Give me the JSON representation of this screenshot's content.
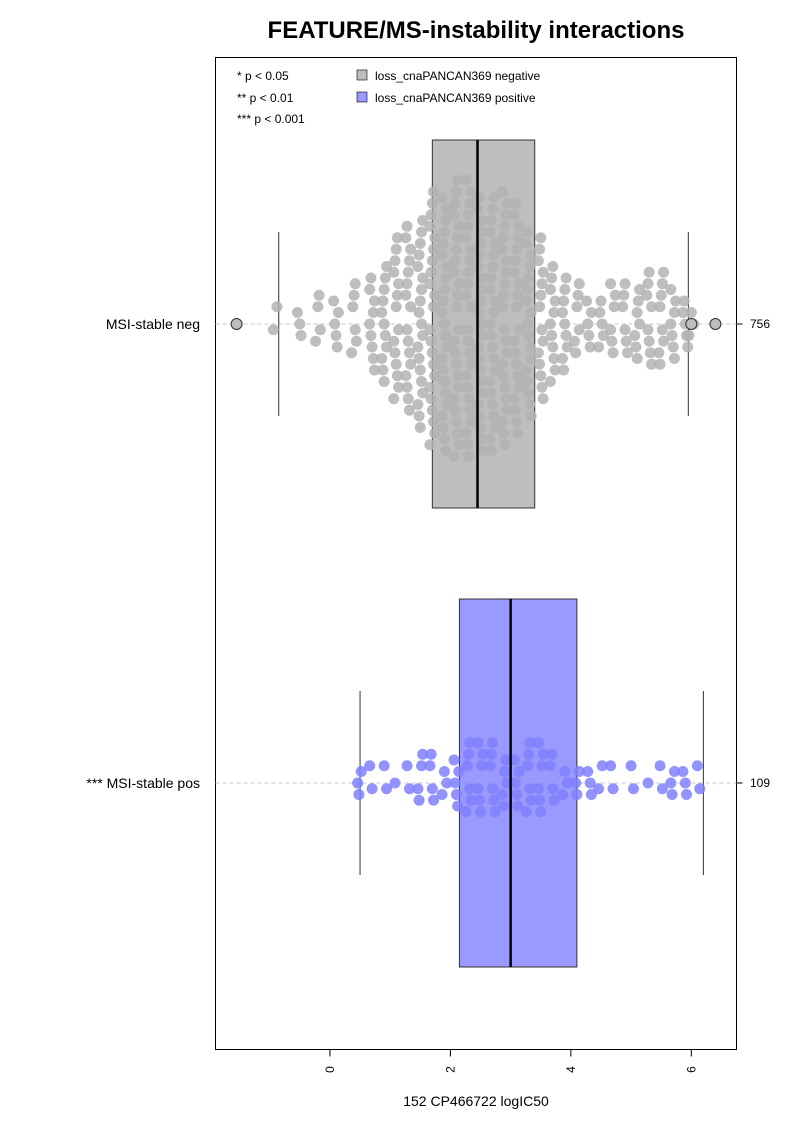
{
  "chart_data": {
    "type": "box-beeswarm",
    "orientation": "horizontal",
    "title": "FEATURE/MS-instability interactions",
    "xlabel": "152 CP466722 logIC50",
    "x_ticks": [
      0,
      2,
      4,
      6
    ],
    "xlim": [
      -1.9,
      6.75
    ],
    "significance_legend": [
      "* p < 0.05",
      "** p < 0.01",
      "*** p < 0.001"
    ],
    "legend": [
      {
        "label": "loss_cnaPANCAN369 negative",
        "color": "#bebebe"
      },
      {
        "label": "loss_cnaPANCAN369 positive",
        "color": "#9999ff"
      }
    ],
    "groups": [
      {
        "label": "MSI-stable neg",
        "count": "756",
        "box_color": "#bebebe",
        "point_color": "#b3b3b3",
        "box": {
          "q1": 1.7,
          "median": 2.45,
          "q3": 3.4
        },
        "whiskers": [
          -0.85,
          5.95
        ],
        "outliers": [
          -1.55,
          6.0,
          6.4
        ],
        "point_profile": [
          [
            -0.9,
            2
          ],
          [
            -0.5,
            3
          ],
          [
            -0.2,
            4
          ],
          [
            0.1,
            5
          ],
          [
            0.4,
            6
          ],
          [
            0.7,
            9
          ],
          [
            0.9,
            11
          ],
          [
            1.1,
            14
          ],
          [
            1.3,
            16
          ],
          [
            1.5,
            19
          ],
          [
            1.7,
            22
          ],
          [
            1.9,
            23
          ],
          [
            2.1,
            24
          ],
          [
            2.3,
            24
          ],
          [
            2.5,
            23
          ],
          [
            2.7,
            23
          ],
          [
            2.9,
            22
          ],
          [
            3.1,
            20
          ],
          [
            3.3,
            17
          ],
          [
            3.5,
            14
          ],
          [
            3.7,
            11
          ],
          [
            3.9,
            9
          ],
          [
            4.1,
            6
          ],
          [
            4.3,
            5
          ],
          [
            4.5,
            5
          ],
          [
            4.7,
            6
          ],
          [
            4.9,
            6
          ],
          [
            5.1,
            7
          ],
          [
            5.3,
            8
          ],
          [
            5.5,
            8
          ],
          [
            5.7,
            7
          ],
          [
            5.9,
            5
          ],
          [
            6.0,
            3
          ]
        ]
      },
      {
        "label": "*** MSI-stable pos",
        "count": "109",
        "box_color": "#9999ff",
        "point_color": "#8080ff",
        "box": {
          "q1": 2.15,
          "median": 3.0,
          "q3": 4.1
        },
        "whiskers": [
          0.5,
          6.2
        ],
        "outliers": [],
        "point_profile": [
          [
            0.5,
            3
          ],
          [
            0.7,
            2
          ],
          [
            0.9,
            2
          ],
          [
            1.1,
            1
          ],
          [
            1.3,
            2
          ],
          [
            1.5,
            4
          ],
          [
            1.7,
            4
          ],
          [
            1.9,
            3
          ],
          [
            2.1,
            5
          ],
          [
            2.3,
            6
          ],
          [
            2.5,
            6
          ],
          [
            2.7,
            6
          ],
          [
            2.9,
            5
          ],
          [
            3.1,
            5
          ],
          [
            3.3,
            6
          ],
          [
            3.5,
            6
          ],
          [
            3.7,
            4
          ],
          [
            3.9,
            3
          ],
          [
            4.1,
            3
          ],
          [
            4.3,
            3
          ],
          [
            4.5,
            2
          ],
          [
            4.7,
            2
          ],
          [
            5.0,
            2
          ],
          [
            5.3,
            1
          ],
          [
            5.5,
            2
          ],
          [
            5.7,
            3
          ],
          [
            5.9,
            3
          ],
          [
            6.1,
            2
          ]
        ]
      }
    ]
  }
}
